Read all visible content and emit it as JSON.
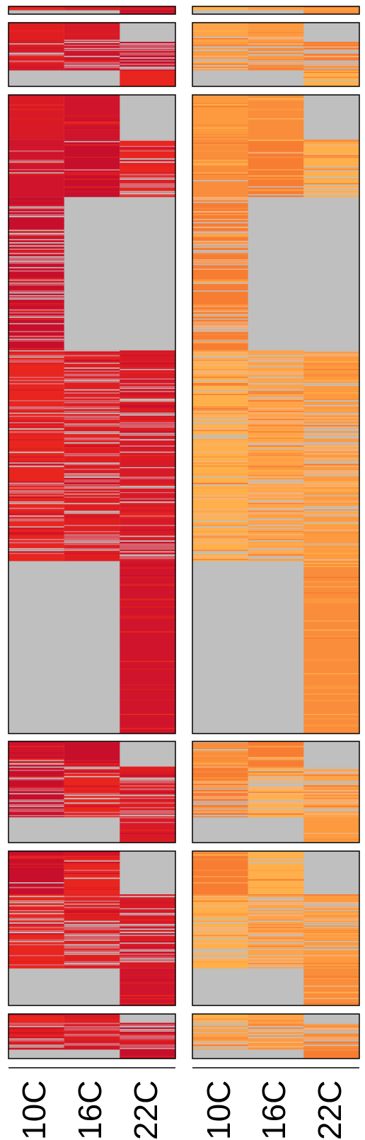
{
  "chart_data": {
    "type": "heatmap",
    "title": "",
    "xlabel": "",
    "ylabel": "",
    "grid": false,
    "legend": "none",
    "colors": {
      "missing": "#bfbfbf",
      "panel_border": "#000000",
      "red_palette": [
        "#e9251f",
        "#e01e20",
        "#d71a26",
        "#cf142b",
        "#c70f2c",
        "#e5372d",
        "#c43a4c",
        "#d6707c"
      ],
      "orange_palette": [
        "#ffb04b",
        "#ffa348",
        "#fd9a3f",
        "#f98d3b",
        "#f77d33",
        "#ff9f52",
        "#f6a66c",
        "#f3b37f"
      ]
    },
    "columns": [
      {
        "group": "red",
        "labels": [
          "10C",
          "16C",
          "22C"
        ]
      },
      {
        "group": "orange",
        "labels": [
          "10C",
          "16C",
          "22C"
        ]
      }
    ],
    "panels": [
      {
        "cluster": 1,
        "segments": [
          {
            "frac": 0.5,
            "presence": [
              1,
              1,
              1
            ],
            "sparsity": [
              0.0,
              0.0,
              0.0
            ]
          },
          {
            "frac": 0.5,
            "presence": [
              0,
              0,
              1
            ],
            "sparsity": [
              0.0,
              0.0,
              0.0
            ]
          }
        ]
      },
      {
        "cluster": 2,
        "segments": [
          {
            "frac": 0.3,
            "presence": [
              1,
              1,
              0
            ],
            "sparsity": [
              0.05,
              0.1,
              0.0
            ]
          },
          {
            "frac": 0.45,
            "presence": [
              1,
              1,
              1
            ],
            "sparsity": [
              0.4,
              0.45,
              0.5
            ]
          },
          {
            "frac": 0.25,
            "presence": [
              0,
              0,
              1
            ],
            "sparsity": [
              0.0,
              0.0,
              0.05
            ]
          }
        ]
      },
      {
        "cluster": 3,
        "segments": [
          {
            "frac": 0.07,
            "presence": [
              1,
              1,
              0
            ],
            "sparsity": [
              0.0,
              0.0,
              0.0
            ]
          },
          {
            "frac": 0.09,
            "presence": [
              1,
              1,
              1
            ],
            "sparsity": [
              0.05,
              0.05,
              0.4
            ]
          },
          {
            "frac": 0.24,
            "presence": [
              1,
              0,
              0
            ],
            "sparsity": [
              0.35,
              0.0,
              0.0
            ]
          },
          {
            "frac": 0.33,
            "presence": [
              1,
              1,
              1
            ],
            "sparsity": [
              0.3,
              0.4,
              0.3
            ]
          },
          {
            "frac": 0.27,
            "presence": [
              0,
              0,
              1
            ],
            "sparsity": [
              0.0,
              0.0,
              0.0
            ]
          }
        ]
      },
      {
        "cluster": 4,
        "segments": [
          {
            "frac": 0.25,
            "presence": [
              1,
              1,
              0
            ],
            "sparsity": [
              0.05,
              0.05,
              0.0
            ]
          },
          {
            "frac": 0.5,
            "presence": [
              1,
              1,
              1
            ],
            "sparsity": [
              0.4,
              0.4,
              0.45
            ]
          },
          {
            "frac": 0.25,
            "presence": [
              0,
              0,
              1
            ],
            "sparsity": [
              0.0,
              0.0,
              0.05
            ]
          }
        ]
      },
      {
        "cluster": 5,
        "segments": [
          {
            "frac": 0.28,
            "presence": [
              1,
              1,
              0
            ],
            "sparsity": [
              0.05,
              0.05,
              0.0
            ]
          },
          {
            "frac": 0.48,
            "presence": [
              1,
              1,
              1
            ],
            "sparsity": [
              0.4,
              0.35,
              0.4
            ]
          },
          {
            "frac": 0.24,
            "presence": [
              0,
              0,
              1
            ],
            "sparsity": [
              0.0,
              0.0,
              0.05
            ]
          }
        ]
      },
      {
        "cluster": 6,
        "segments": [
          {
            "frac": 0.2,
            "presence": [
              1,
              1,
              0
            ],
            "sparsity": [
              0.05,
              0.05,
              0.0
            ]
          },
          {
            "frac": 0.6,
            "presence": [
              1,
              1,
              1
            ],
            "sparsity": [
              0.45,
              0.4,
              0.5
            ]
          },
          {
            "frac": 0.2,
            "presence": [
              0,
              0,
              1
            ],
            "sparsity": [
              0.0,
              0.0,
              0.05
            ]
          }
        ]
      }
    ]
  }
}
